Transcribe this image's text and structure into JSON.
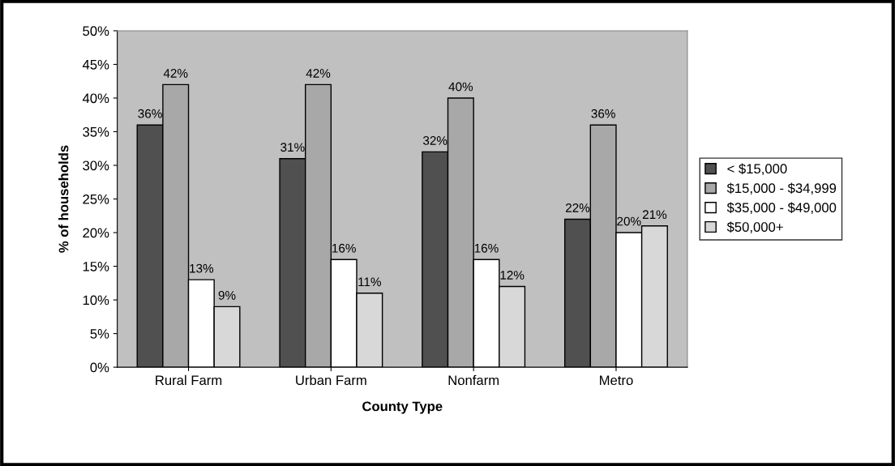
{
  "chart_data": {
    "type": "bar",
    "xlabel": "County Type",
    "ylabel": "% of households",
    "categories": [
      "Rural Farm",
      "Urban Farm",
      "Nonfarm",
      "Metro"
    ],
    "series": [
      {
        "name": "< $15,000",
        "color": "#505050",
        "values": [
          36,
          31,
          32,
          22
        ],
        "value_labels": [
          "36%",
          "31%",
          "32%",
          "22%"
        ]
      },
      {
        "name": "$15,000 - $34,999",
        "color": "#a8a8a8",
        "values": [
          42,
          42,
          40,
          36
        ],
        "value_labels": [
          "42%",
          "42%",
          "40%",
          "36%"
        ]
      },
      {
        "name": "$35,000 - $49,000",
        "color": "#ffffff",
        "values": [
          13,
          16,
          16,
          20
        ],
        "value_labels": [
          "13%",
          "16%",
          "16%",
          "20%"
        ]
      },
      {
        "name": "$50,000+",
        "color": "#d8d8d8",
        "values": [
          9,
          11,
          12,
          21
        ],
        "value_labels": [
          "9%",
          "11%",
          "12%",
          "21%"
        ]
      }
    ],
    "ylim": [
      0,
      50
    ],
    "yticks": [
      {
        "value": 0,
        "label": "0%"
      },
      {
        "value": 5,
        "label": "5%"
      },
      {
        "value": 10,
        "label": "10%"
      },
      {
        "value": 15,
        "label": "15%"
      },
      {
        "value": 20,
        "label": "20%"
      },
      {
        "value": 25,
        "label": "25%"
      },
      {
        "value": 30,
        "label": "30%"
      },
      {
        "value": 35,
        "label": "35%"
      },
      {
        "value": 40,
        "label": "40%"
      },
      {
        "value": 45,
        "label": "45%"
      },
      {
        "value": 50,
        "label": "50%"
      }
    ],
    "grid": false,
    "legend": "right"
  }
}
